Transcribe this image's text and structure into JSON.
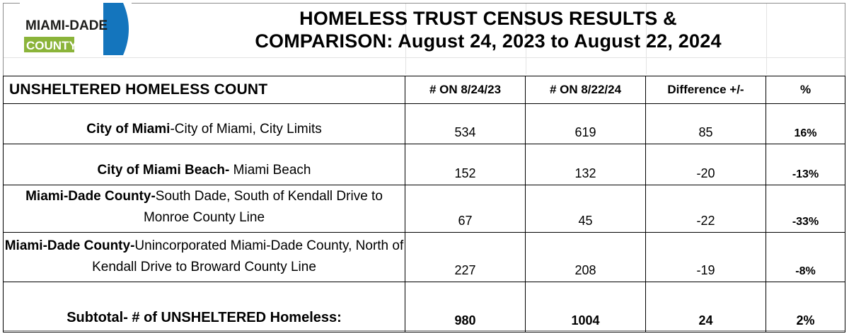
{
  "logo": {
    "line1": "MIAMI-DADE",
    "line2": "COUNTY",
    "colors": {
      "blue": "#1475bd",
      "green": "#8bb43a"
    }
  },
  "title": {
    "line1": "HOMELESS TRUST CENSUS RESULTS &",
    "line2": "COMPARISON:  August 24, 2023 to August 22, 2024"
  },
  "table": {
    "headers": {
      "label": "UNSHELTERED HOMELESS COUNT",
      "col1": "# ON 8/24/23",
      "col2": "# ON 8/22/24",
      "col3": "Difference +/-",
      "col4": "%"
    },
    "rows": [
      {
        "bold": "City of Miami",
        "rest": "-City of Miami, City Limits",
        "v2023": "534",
        "v2024": "619",
        "diff": "85",
        "pct": "16%"
      },
      {
        "bold": "City of Miami Beach-",
        "rest": " Miami Beach",
        "v2023": "152",
        "v2024": "132",
        "diff": "-20",
        "pct": "-13%"
      },
      {
        "bold": "Miami-Dade County-",
        "rest": "South Dade, South of Kendall Drive to Monroe County Line",
        "v2023": "67",
        "v2024": "45",
        "diff": "-22",
        "pct": "-33%"
      },
      {
        "bold": "Miami-Dade County-",
        "rest": "Unincorporated Miami-Dade County, North of Kendall Drive to Broward County Line",
        "v2023": "227",
        "v2024": "208",
        "diff": "-19",
        "pct": "-8%"
      }
    ],
    "total": {
      "label": "Subtotal- # of UNSHELTERED Homeless:",
      "v2023": "980",
      "v2024": "1004",
      "diff": "24",
      "pct": "2%"
    }
  }
}
